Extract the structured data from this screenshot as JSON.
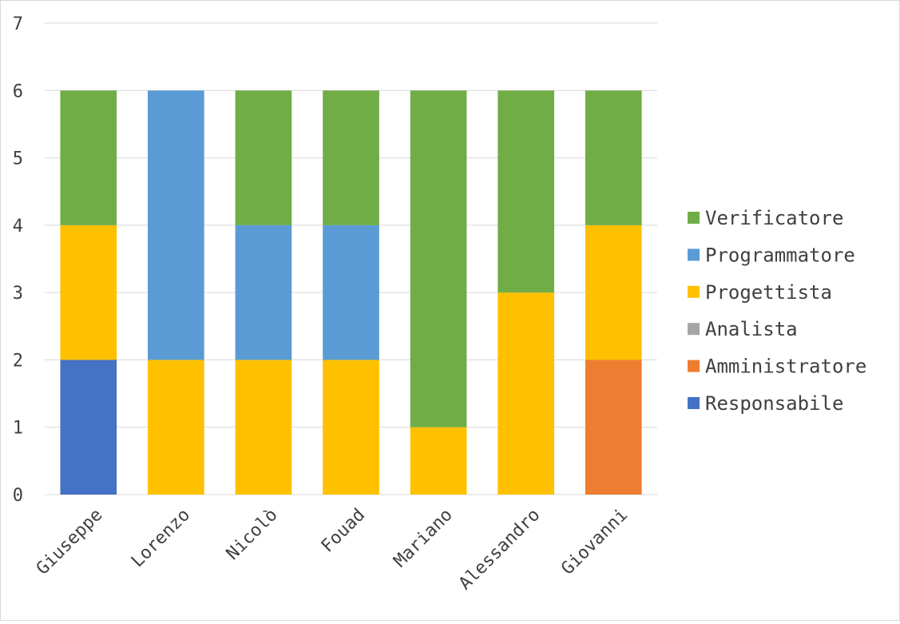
{
  "chart_data": {
    "type": "bar",
    "stacked": true,
    "title": "",
    "xlabel": "",
    "ylabel": "",
    "ylim": [
      0,
      7
    ],
    "yticks": [
      "0",
      "1",
      "2",
      "3",
      "4",
      "5",
      "6",
      "7"
    ],
    "grid": true,
    "legend_position": "right",
    "categories": [
      "Giuseppe",
      "Lorenzo",
      "Nicolò",
      "Fouad",
      "Mariano",
      "Alessandro",
      "Giovanni"
    ],
    "series": [
      {
        "name": "Responsabile",
        "color": "#4472C4",
        "values": [
          2,
          0,
          0,
          0,
          0,
          0,
          0
        ]
      },
      {
        "name": "Amministratore",
        "color": "#ED7D31",
        "values": [
          0,
          0,
          0,
          0,
          0,
          0,
          2
        ]
      },
      {
        "name": "Analista",
        "color": "#A5A5A5",
        "values": [
          0,
          0,
          0,
          0,
          0,
          0,
          0
        ]
      },
      {
        "name": "Progettista",
        "color": "#FFC000",
        "values": [
          2,
          2,
          2,
          2,
          1,
          3,
          2
        ]
      },
      {
        "name": "Programmatore",
        "color": "#5B9BD5",
        "values": [
          0,
          4,
          2,
          2,
          0,
          0,
          0
        ]
      },
      {
        "name": "Verificatore",
        "color": "#70AD47",
        "values": [
          2,
          0,
          2,
          2,
          5,
          3,
          2
        ]
      }
    ]
  }
}
